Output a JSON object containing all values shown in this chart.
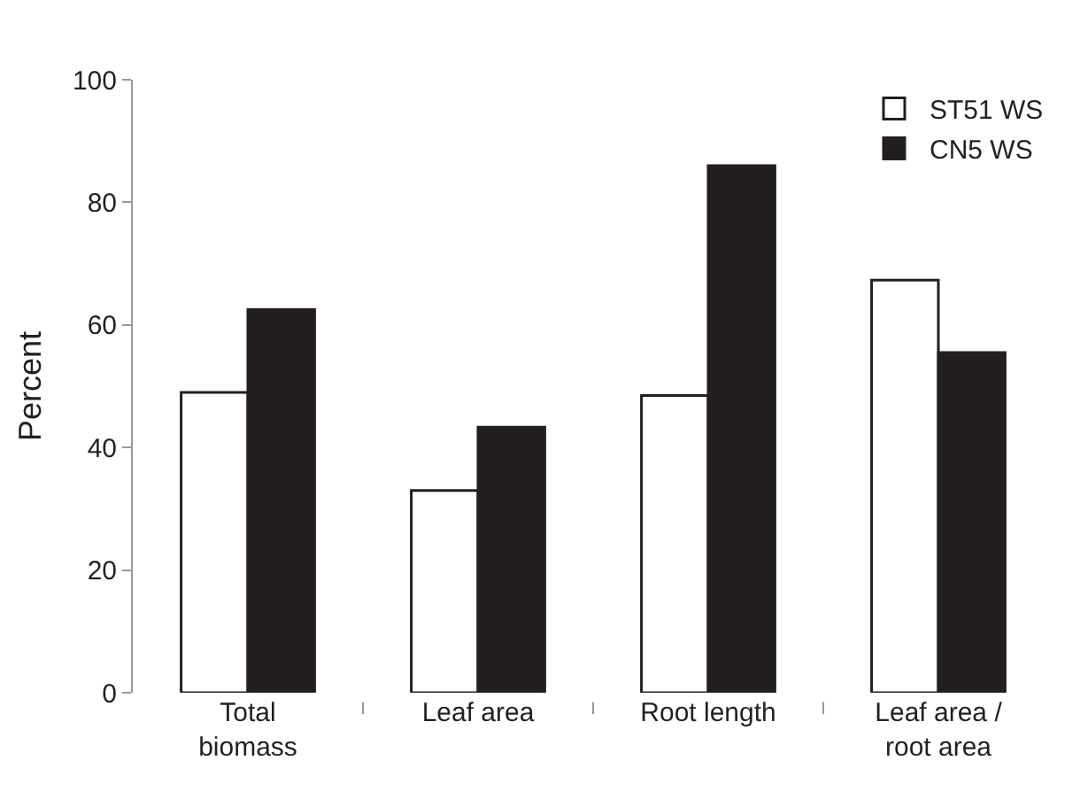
{
  "chart_data": {
    "type": "bar",
    "ylabel": "Percent",
    "categories": [
      "Total\nbiomass",
      "Leaf area",
      "Root length",
      "Leaf area /\nroot area"
    ],
    "series": [
      {
        "name": "ST51 WS",
        "color": "#ffffff",
        "values": [
          49,
          33,
          48.5,
          67.3
        ]
      },
      {
        "name": "CN5 WS",
        "color": "#231f20",
        "values": [
          62.5,
          43.3,
          86,
          55.5
        ]
      }
    ],
    "ylim": [
      0,
      100
    ],
    "yticks": [
      0,
      20,
      40,
      60,
      80,
      100
    ],
    "legend": "top right"
  }
}
